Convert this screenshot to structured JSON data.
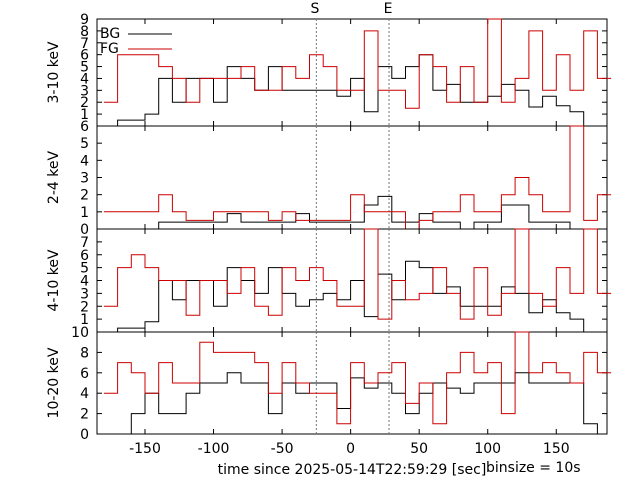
{
  "figure": {
    "marker_labels": {
      "start": "S",
      "end": "E"
    },
    "xlabel": "time since 2025-05-14T22:59:29 [sec]",
    "binsize_label": "binsize = 10s",
    "legend": [
      {
        "name": "BG",
        "color": "#000000"
      },
      {
        "name": "FG",
        "color": "#cc0000"
      }
    ]
  },
  "chart_data": [
    {
      "type": "line",
      "step": true,
      "ylabel": "3-10 keV",
      "xlim": [
        -185,
        187
      ],
      "ylim": [
        0,
        9
      ],
      "yticks": [
        1,
        2,
        3,
        4,
        5,
        6,
        7,
        8,
        9
      ],
      "markers": [
        -25,
        28
      ],
      "x_edges": [
        -180,
        -170,
        -160,
        -150,
        -140,
        -130,
        -120,
        -110,
        -100,
        -90,
        -80,
        -70,
        -60,
        -50,
        -40,
        -30,
        -20,
        -10,
        0,
        10,
        20,
        30,
        40,
        50,
        60,
        70,
        80,
        90,
        100,
        110,
        120,
        130,
        140,
        150,
        160,
        170,
        180,
        190
      ],
      "series": [
        {
          "name": "BG",
          "color": "#000000",
          "values": [
            0,
            0.5,
            0.5,
            1,
            4,
            2,
            4,
            4,
            2,
            5,
            4,
            3,
            5,
            3,
            3,
            3,
            3,
            2.5,
            4,
            1.2,
            5,
            4,
            5,
            6,
            3,
            3.5,
            2,
            2,
            2.5,
            3.5,
            3,
            1.6,
            2.5,
            1.7,
            1.2,
            0
          ]
        },
        {
          "name": "FG",
          "color": "#cc0000",
          "values": [
            2,
            6,
            6,
            6,
            5,
            4,
            2,
            4,
            4,
            4,
            5,
            3,
            3,
            5,
            4,
            6,
            5,
            3,
            3,
            8,
            3,
            3,
            1.5,
            6,
            5,
            2,
            5,
            2,
            9,
            2,
            4,
            8,
            3,
            6,
            3,
            8,
            4,
            4
          ]
        }
      ]
    },
    {
      "type": "line",
      "step": true,
      "ylabel": "2-4 keV",
      "xlim": [
        -185,
        187
      ],
      "ylim": [
        0,
        6
      ],
      "yticks": [
        0,
        1,
        2,
        3,
        4,
        5,
        6
      ],
      "markers": [
        -25,
        28
      ],
      "x_edges": [
        -180,
        -170,
        -160,
        -150,
        -140,
        -130,
        -120,
        -110,
        -100,
        -90,
        -80,
        -70,
        -60,
        -50,
        -40,
        -30,
        -20,
        -10,
        0,
        10,
        20,
        30,
        40,
        50,
        60,
        70,
        80,
        90,
        100,
        110,
        120,
        130,
        140,
        150,
        160,
        170,
        180,
        190
      ],
      "series": [
        {
          "name": "BG",
          "color": "#000000",
          "values": [
            0,
            0,
            0,
            0,
            0.4,
            0.4,
            0.4,
            0.4,
            0.4,
            0.9,
            0.4,
            0.4,
            0.4,
            0.4,
            0.9,
            0.4,
            0.4,
            0.4,
            0.4,
            1.4,
            1.9,
            0.4,
            0.4,
            0.9,
            0.4,
            0.4,
            0,
            0.4,
            0.4,
            1.4,
            1.4,
            0.4,
            0.4,
            0.4,
            0,
            0,
            0
          ]
        },
        {
          "name": "FG",
          "color": "#cc0000",
          "values": [
            1,
            1,
            1,
            1,
            2,
            1,
            0.5,
            0.5,
            1,
            1,
            1,
            1,
            0.5,
            1,
            0.5,
            0.5,
            0.5,
            0.5,
            2,
            1,
            1,
            1,
            0,
            0.5,
            1,
            1,
            2,
            1,
            1,
            2,
            3,
            2,
            1,
            1,
            6,
            0.5,
            2,
            2
          ]
        }
      ]
    },
    {
      "type": "line",
      "step": true,
      "ylabel": "4-10 keV",
      "xlim": [
        -185,
        187
      ],
      "ylim": [
        0,
        8
      ],
      "yticks": [
        1,
        2,
        3,
        4,
        5,
        6,
        7
      ],
      "markers": [
        -25,
        28
      ],
      "x_edges": [
        -180,
        -170,
        -160,
        -150,
        -140,
        -130,
        -120,
        -110,
        -100,
        -90,
        -80,
        -70,
        -60,
        -50,
        -40,
        -30,
        -20,
        -10,
        0,
        10,
        20,
        30,
        40,
        50,
        60,
        70,
        80,
        90,
        100,
        110,
        120,
        130,
        140,
        150,
        160,
        170,
        180,
        190
      ],
      "series": [
        {
          "name": "BG",
          "color": "#000000",
          "values": [
            0,
            0.3,
            0.3,
            0.8,
            4,
            2.5,
            4,
            4,
            2,
            5,
            4,
            3,
            5,
            3,
            2,
            2.5,
            3,
            2.5,
            4,
            1.2,
            4.5,
            2.5,
            5.5,
            5,
            3,
            3.5,
            2,
            2,
            2,
            3.5,
            3,
            1.5,
            2.5,
            1.5,
            1,
            0
          ]
        },
        {
          "name": "FG",
          "color": "#cc0000",
          "values": [
            2,
            5,
            6,
            5,
            4,
            4,
            1.3,
            4,
            4,
            3,
            5,
            2,
            1.3,
            5,
            4,
            5,
            4,
            2,
            2,
            8,
            1,
            4,
            2.5,
            3,
            5,
            3,
            1,
            5,
            1.3,
            3,
            8,
            3,
            2,
            5,
            3,
            8,
            3,
            3
          ]
        }
      ]
    },
    {
      "type": "line",
      "step": true,
      "ylabel": "10-20 keV",
      "xlim": [
        -185,
        187
      ],
      "ylim": [
        0,
        10
      ],
      "yticks": [
        0,
        2,
        4,
        6,
        8,
        10
      ],
      "markers": [
        -25,
        28
      ],
      "x_edges": [
        -180,
        -170,
        -160,
        -150,
        -140,
        -130,
        -120,
        -110,
        -100,
        -90,
        -80,
        -70,
        -60,
        -50,
        -40,
        -30,
        -20,
        -10,
        0,
        10,
        20,
        30,
        40,
        50,
        60,
        70,
        80,
        90,
        100,
        110,
        120,
        130,
        140,
        150,
        160,
        170,
        180,
        190
      ],
      "series": [
        {
          "name": "BG",
          "color": "#000000",
          "values": [
            0,
            0,
            2,
            4,
            2,
            2,
            4,
            5,
            5,
            6,
            5,
            5,
            2,
            5,
            4,
            5,
            5,
            2.5,
            5.5,
            4.5,
            5,
            4,
            2,
            4,
            5,
            4.5,
            4,
            5,
            5,
            5,
            6,
            5,
            5,
            5,
            5,
            1,
            0
          ]
        },
        {
          "name": "FG",
          "color": "#cc0000",
          "values": [
            4,
            7,
            6,
            4,
            7,
            5,
            5,
            9,
            8,
            8,
            8,
            7,
            4,
            7,
            5,
            4,
            4,
            1,
            7,
            5,
            6,
            7,
            3,
            5,
            1,
            6,
            8,
            6,
            7,
            2,
            10,
            6,
            7,
            6,
            5,
            8,
            6,
            6
          ]
        }
      ]
    }
  ]
}
